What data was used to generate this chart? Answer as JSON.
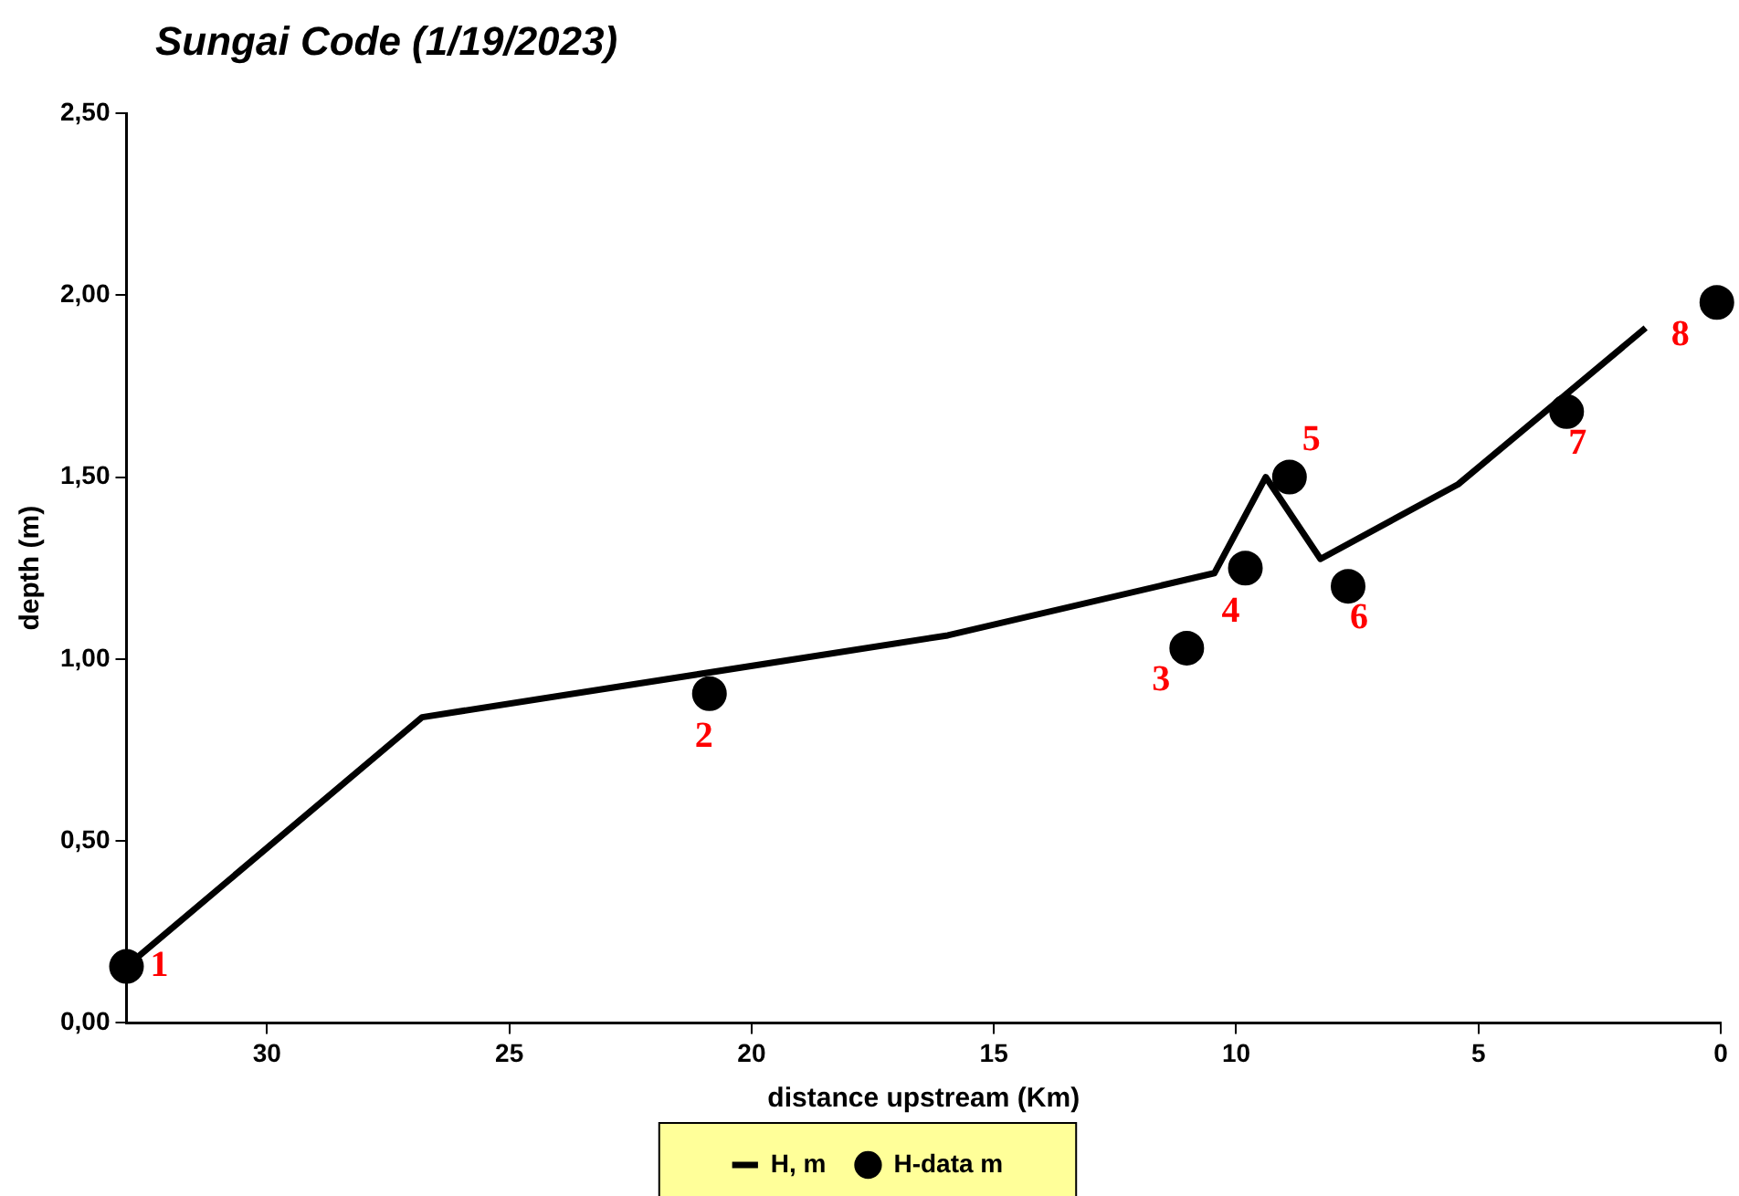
{
  "chart_data": {
    "type": "line",
    "title": "Sungai Code (1/19/2023)",
    "xlabel": "distance upstream (Km)",
    "ylabel": "depth (m)",
    "xlim": [
      32.9,
      0
    ],
    "xticks": [
      30,
      25,
      20,
      15,
      10,
      5,
      0
    ],
    "ylim": [
      0,
      2.5
    ],
    "yticks": [
      {
        "value": 0,
        "label": "0,00"
      },
      {
        "value": 0.5,
        "label": "0,50"
      },
      {
        "value": 1,
        "label": "1,00"
      },
      {
        "value": 1.5,
        "label": "1,50"
      },
      {
        "value": 2,
        "label": "2,00"
      },
      {
        "value": 2.5,
        "label": "2,50"
      }
    ],
    "grid": false,
    "legend": "bottom",
    "line_style": "solid",
    "series": [
      {
        "name": "H, m",
        "marker": "none",
        "color": "#000000",
        "x": [
          32.9,
          26.8,
          15.95,
          10.45,
          9.39,
          8.26,
          5.42,
          1.55
        ],
        "values": [
          0.155,
          0.84,
          1.065,
          1.236,
          1.5,
          1.275,
          1.48,
          1.91
        ]
      },
      {
        "name": "H-data m",
        "type": "scatter",
        "marker": "circle",
        "color": "#000000",
        "x": [
          32.9,
          20.87,
          11.02,
          9.81,
          8.9,
          7.69,
          3.18,
          0.08
        ],
        "values": [
          0.155,
          0.905,
          1.03,
          1.25,
          1.5,
          1.2,
          1.68,
          1.98
        ]
      }
    ],
    "annotations": [
      {
        "text": "1",
        "x": 32.9,
        "y": 0.155
      },
      {
        "text": "2",
        "x": 20.87,
        "y": 0.905
      },
      {
        "text": "3",
        "x": 11.02,
        "y": 1.03
      },
      {
        "text": "4",
        "x": 9.81,
        "y": 1.25
      },
      {
        "text": "5",
        "x": 8.9,
        "y": 1.5
      },
      {
        "text": "6",
        "x": 7.69,
        "y": 1.2
      },
      {
        "text": "7",
        "x": 3.18,
        "y": 1.68
      },
      {
        "text": "8",
        "x": 0.08,
        "y": 1.98
      }
    ]
  }
}
